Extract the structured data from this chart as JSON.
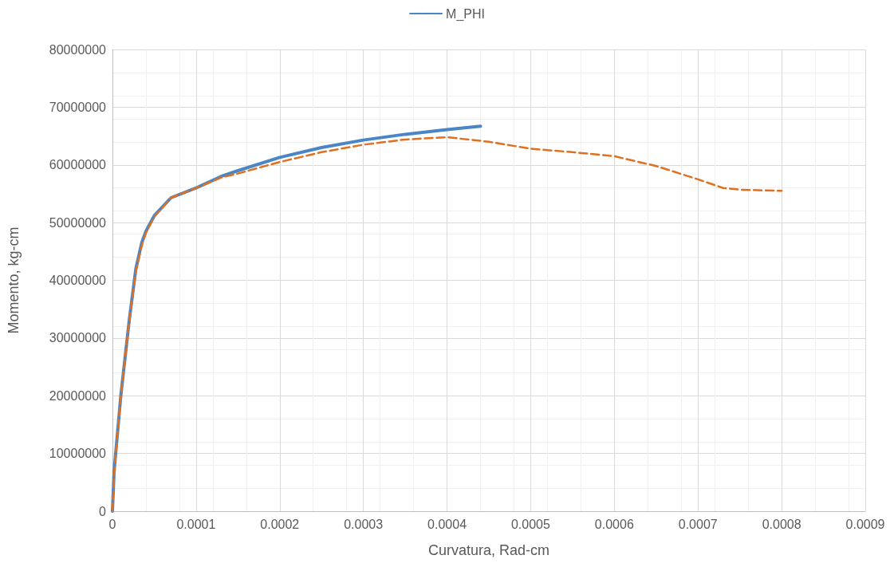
{
  "chart_data": {
    "type": "line",
    "xlabel": "Curvatura, Rad-cm",
    "ylabel": "Momento, kg-cm",
    "xlim": [
      0,
      0.0009
    ],
    "xticks": [
      0,
      0.0001,
      0.0002,
      0.0003,
      0.0004,
      0.0005,
      0.0006,
      0.0007,
      0.0008,
      0.0009
    ],
    "ylim": [
      0,
      80000000
    ],
    "yticks": [
      0,
      10000000,
      20000000,
      30000000,
      40000000,
      50000000,
      60000000,
      70000000,
      80000000
    ],
    "grid": true,
    "legend": "top",
    "marker": "none",
    "series": [
      {
        "name": "M_PHI",
        "color": "#4a86c5",
        "line_style": "solid",
        "x": [
          0,
          2e-06,
          1e-05,
          2e-05,
          2.8e-05,
          3.5e-05,
          4e-05,
          5e-05,
          7e-05,
          0.0001,
          0.00013,
          0.00015,
          0.0002,
          0.00025,
          0.0003,
          0.00035,
          0.0004,
          0.00044
        ],
        "values": [
          0,
          7000000,
          20000000,
          33000000,
          42000000,
          46500000,
          48500000,
          51200000,
          54300000,
          56000000,
          58000000,
          59000000,
          61300000,
          63000000,
          64300000,
          65300000,
          66100000,
          66700000
        ]
      },
      {
        "color": "#e07020",
        "line_style": "dashed",
        "x": [
          0,
          2e-06,
          1e-05,
          2e-05,
          2.8e-05,
          3.5e-05,
          4e-05,
          5e-05,
          7e-05,
          0.0001,
          0.00013,
          0.00015,
          0.0002,
          0.00025,
          0.0003,
          0.00035,
          0.0004,
          0.00045,
          0.0005,
          0.00055,
          0.0006,
          0.00065,
          0.0007,
          0.00073,
          0.00075,
          0.0008
        ],
        "values": [
          0,
          6500000,
          20000000,
          33000000,
          41500000,
          46000000,
          48200000,
          51000000,
          54300000,
          56000000,
          57800000,
          58500000,
          60500000,
          62200000,
          63500000,
          64400000,
          64800000,
          64000000,
          62800000,
          62200000,
          61500000,
          59800000,
          57500000,
          56000000,
          55700000,
          55500000
        ]
      }
    ]
  }
}
